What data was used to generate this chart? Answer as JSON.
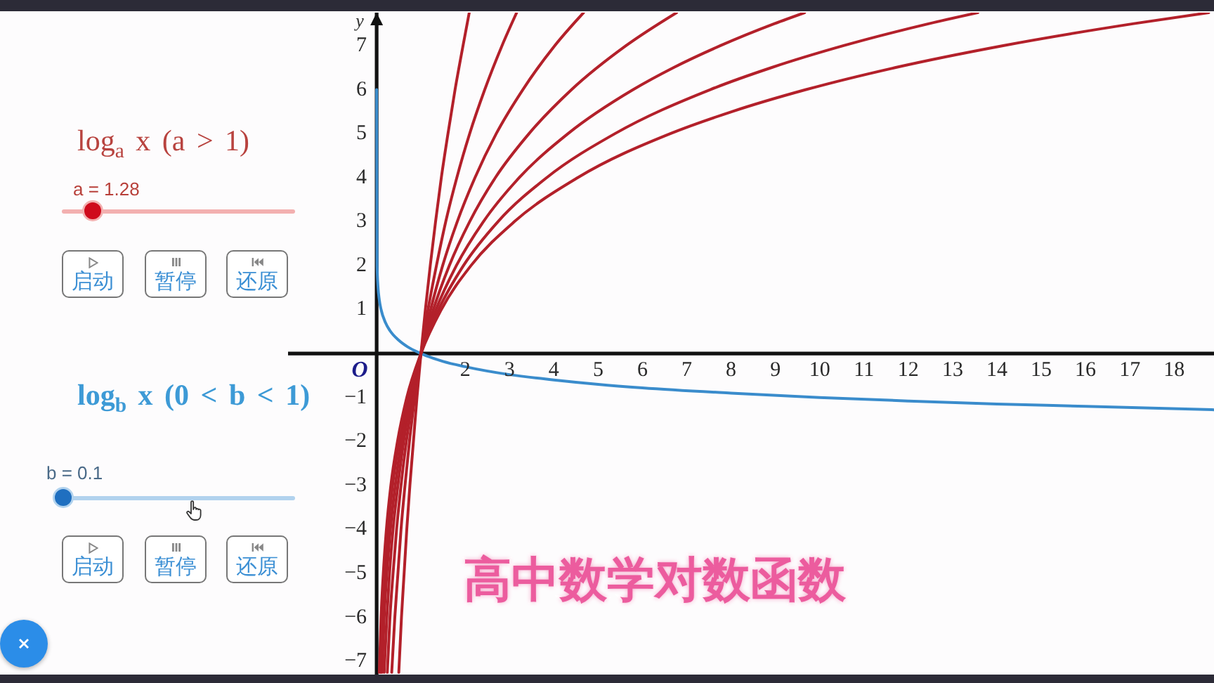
{
  "chart_data": {
    "type": "line",
    "title": "高中数学对数函数",
    "ylabel": "y",
    "annotations": [
      "O",
      "log$_{a}$ x (a > 1)",
      "a = 1.28",
      "启动",
      "暂停",
      "还原",
      "log$_{b}$ x (0 < b < 1)",
      "b = 0.1",
      "启动",
      "暂停",
      "还原"
    ],
    "xlim": [
      -2,
      18.9
    ],
    "ylim": [
      -7.3,
      7.75
    ],
    "xticks": [
      2,
      3,
      4,
      5,
      6,
      7,
      8,
      9,
      10,
      11,
      12,
      13,
      14,
      15,
      16,
      17,
      18
    ],
    "yticks": [
      {
        "value": -7,
        "label": "−7"
      },
      {
        "value": -6,
        "label": "−6"
      },
      {
        "value": -5,
        "label": "−5"
      },
      {
        "value": -4,
        "label": "−4"
      },
      {
        "value": -3,
        "label": "−3"
      },
      {
        "value": -2,
        "label": "−2"
      },
      {
        "value": -1,
        "label": "−1"
      },
      1,
      2,
      3,
      4,
      5,
      6,
      7
    ],
    "marker": "none",
    "line_style": "solid",
    "series": [
      {
        "color": "#3a8ccc",
        "x": [
          0,
          0.01,
          0.03,
          0.06,
          0.1,
          0.2,
          0.3,
          0.5,
          0.7,
          1,
          1.5,
          2,
          3,
          4,
          5,
          6,
          8,
          10,
          12,
          14,
          16,
          18.9
        ],
        "values": [
          6,
          2,
          1.52,
          1.22,
          1,
          0.7,
          0.52,
          0.3,
          0.15,
          0,
          -0.18,
          -0.3,
          -0.48,
          -0.6,
          -0.7,
          -0.78,
          -0.9,
          -1,
          -1.08,
          -1.15,
          -1.2,
          -1.28
        ]
      },
      {
        "color": "#b3202a",
        "x": [
          0.5,
          0.56,
          0.62,
          0.68,
          0.75,
          0.83,
          0.91,
          1,
          1.1,
          1.21,
          1.33,
          1.46,
          1.61,
          1.77,
          1.95,
          2.09
        ],
        "values": [
          -7.25,
          -6,
          -5,
          -4,
          -3,
          -2,
          -1,
          0,
          1,
          2,
          3,
          4,
          5,
          6,
          7,
          7.75
        ]
      },
      {
        "color": "#b3202a",
        "x": [
          0.34,
          0.41,
          0.48,
          0.55,
          0.64,
          0.74,
          0.86,
          1,
          1.16,
          1.35,
          1.56,
          1.81,
          2.1,
          2.44,
          2.83,
          3.16
        ],
        "values": [
          -7.25,
          -6,
          -5,
          -4,
          -3,
          -2,
          -1,
          0,
          1,
          2,
          3,
          4,
          5,
          6,
          7,
          7.75
        ]
      },
      {
        "color": "#b3202a",
        "x": [
          0.24,
          0.3,
          0.37,
          0.45,
          0.55,
          0.67,
          0.82,
          1,
          1.22,
          1.49,
          1.82,
          2.22,
          2.7,
          3.3,
          4.02,
          4.67
        ],
        "values": [
          -7.25,
          -6,
          -5,
          -4,
          -3,
          -2,
          -1,
          0,
          1,
          2,
          3,
          4,
          5,
          6,
          7,
          7.75
        ]
      },
      {
        "color": "#b3202a",
        "x": [
          0.17,
          0.23,
          0.29,
          0.37,
          0.48,
          0.61,
          0.78,
          1,
          1.28,
          1.64,
          2.1,
          2.68,
          3.44,
          4.4,
          5.63,
          6.77
        ],
        "values": [
          -7.25,
          -6,
          -5,
          -4,
          -3,
          -2,
          -1,
          0,
          1,
          2,
          3,
          4,
          5,
          6,
          7,
          7.75
        ]
      },
      {
        "color": "#b3202a",
        "x": [
          0.12,
          0.17,
          0.23,
          0.31,
          0.42,
          0.56,
          0.75,
          1,
          1.34,
          1.8,
          2.41,
          3.22,
          4.32,
          5.79,
          6.7,
          7.76,
          8.98,
          9.66
        ],
        "values": [
          -7.25,
          -6,
          -5,
          -4,
          -3,
          -2,
          -1,
          0,
          1,
          2,
          3,
          4,
          5,
          6,
          6.5,
          7,
          7.5,
          7.75
        ]
      },
      {
        "color": "#b3202a",
        "x": [
          0.09,
          0.13,
          0.19,
          0.26,
          0.36,
          0.51,
          0.71,
          1,
          1.4,
          1.96,
          2.74,
          3.84,
          5.38,
          7.53,
          8.91,
          10.54,
          12.47,
          13.57
        ],
        "values": [
          -7.25,
          -6,
          -5,
          -4,
          -3,
          -2,
          -1,
          0,
          1,
          2,
          3,
          4,
          5,
          6,
          6.5,
          7,
          7.5,
          7.75
        ]
      },
      {
        "color": "#b3202a",
        "x": [
          0.06,
          0.1,
          0.15,
          0.22,
          0.32,
          0.47,
          0.68,
          1,
          1.46,
          2.13,
          3.11,
          4.54,
          6.63,
          8.02,
          9.69,
          11.7,
          14.14,
          17.09,
          18.78
        ],
        "values": [
          -7.25,
          -6,
          -5,
          -4,
          -3,
          -2,
          -1,
          0,
          1,
          2,
          3,
          4,
          5,
          5.5,
          6,
          6.5,
          7,
          7.5,
          7.75
        ]
      }
    ]
  }
}
